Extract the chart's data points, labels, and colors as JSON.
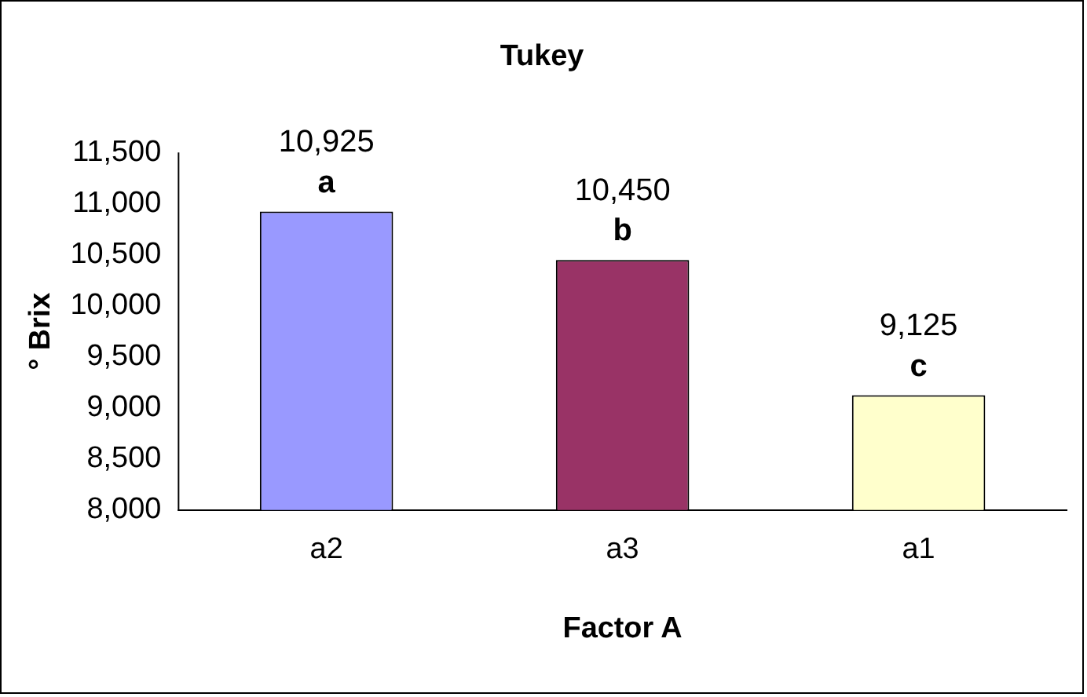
{
  "chart_data": {
    "type": "bar",
    "title": "Tukey",
    "xlabel": "Factor A",
    "ylabel": "° Brix",
    "categories": [
      "a2",
      "a3",
      "a1"
    ],
    "values": [
      10925,
      10450,
      9125
    ],
    "colors": [
      "#9999ff",
      "#993366",
      "#ffffcc"
    ],
    "value_labels": [
      "10,925",
      "10,450",
      "9,125"
    ],
    "annotations": [
      {
        "text": "a",
        "x": "a2",
        "y": 10925
      },
      {
        "text": "b",
        "x": "a3",
        "y": 10450
      },
      {
        "text": "c",
        "x": "a1",
        "y": 9125
      }
    ],
    "ylim": [
      8000,
      11500
    ],
    "yticks": [
      {
        "value": 8000,
        "label": "8,000"
      },
      {
        "value": 8500,
        "label": "8,500"
      },
      {
        "value": 9000,
        "label": "9,000"
      },
      {
        "value": 9500,
        "label": "9,500"
      },
      {
        "value": 10000,
        "label": "10,000"
      },
      {
        "value": 10500,
        "label": "10,500"
      },
      {
        "value": 11000,
        "label": "11,000"
      },
      {
        "value": 11500,
        "label": "11,500"
      }
    ],
    "grid": false,
    "legend": false
  }
}
